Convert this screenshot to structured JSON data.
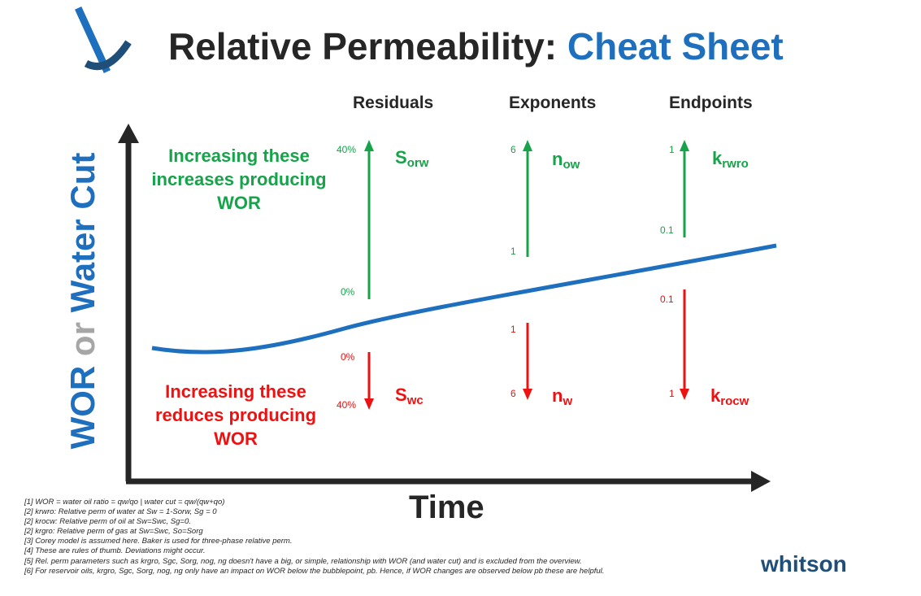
{
  "title": {
    "main": "Relative Permeability:",
    "accent": "Cheat Sheet"
  },
  "columns": {
    "residuals": "Residuals",
    "exponents": "Exponents",
    "endpoints": "Endpoints"
  },
  "messages": {
    "increase": "Increasing these increases producing WOR",
    "reduce": "Increasing these reduces producing WOR"
  },
  "residuals": {
    "sorw": {
      "sym": "S",
      "sub": "orw",
      "top": "40%",
      "bottom": "0%"
    },
    "swc": {
      "sym": "S",
      "sub": "wc",
      "top": "0%",
      "bottom": "40%"
    }
  },
  "exponents": {
    "now": {
      "sym": "n",
      "sub": "ow",
      "top": "6",
      "bottom": "1"
    },
    "nw": {
      "sym": "n",
      "sub": "w",
      "top": "1",
      "bottom": "6"
    }
  },
  "endpoints": {
    "krwro": {
      "sym": "k",
      "sub": "rwro",
      "top": "1",
      "bottom": "0.1"
    },
    "krocw": {
      "sym": "k",
      "sub": "rocw",
      "top": "0.1",
      "bottom": "1"
    }
  },
  "axes": {
    "y_wor": "WOR",
    "y_or": "or",
    "y_wc": "Water Cut",
    "x": "Time"
  },
  "footnotes": [
    "[1] WOR = water oil ratio = qw/qo | water cut = qw/(qw+qo)",
    "[2] krwro: Relative perm of water at Sw = 1-Sorw, Sg = 0",
    "[2] krocw: Relative perm of oil at Sw=Swc, Sg=0.",
    "[2] krgro: Relative perm of gas at Sw=Swc, So=Sorg",
    "[3] Corey model is assumed here. Baker is used for three-phase relative perm.",
    "[4] These are rules of thumb. Deviations might occur.",
    "[5] Rel. perm parameters such as krgro, Sgc, Sorg, nog, ng doesn't have a big, or simple, relationship with WOR (and water cut) and is excluded from the overview.",
    "[6] For reservoir oils, krgro, Sgc, Sorg, nog, ng only have an impact on WOR below the bubblepoint, pb. Hence, if WOR changes are observed below pb these are helpful."
  ],
  "brand": "whitson",
  "colors": {
    "blue": "#1f6fbf",
    "navy": "#1f4e79",
    "green": "#16a34a",
    "red": "#ee1111",
    "dark": "#262626"
  }
}
